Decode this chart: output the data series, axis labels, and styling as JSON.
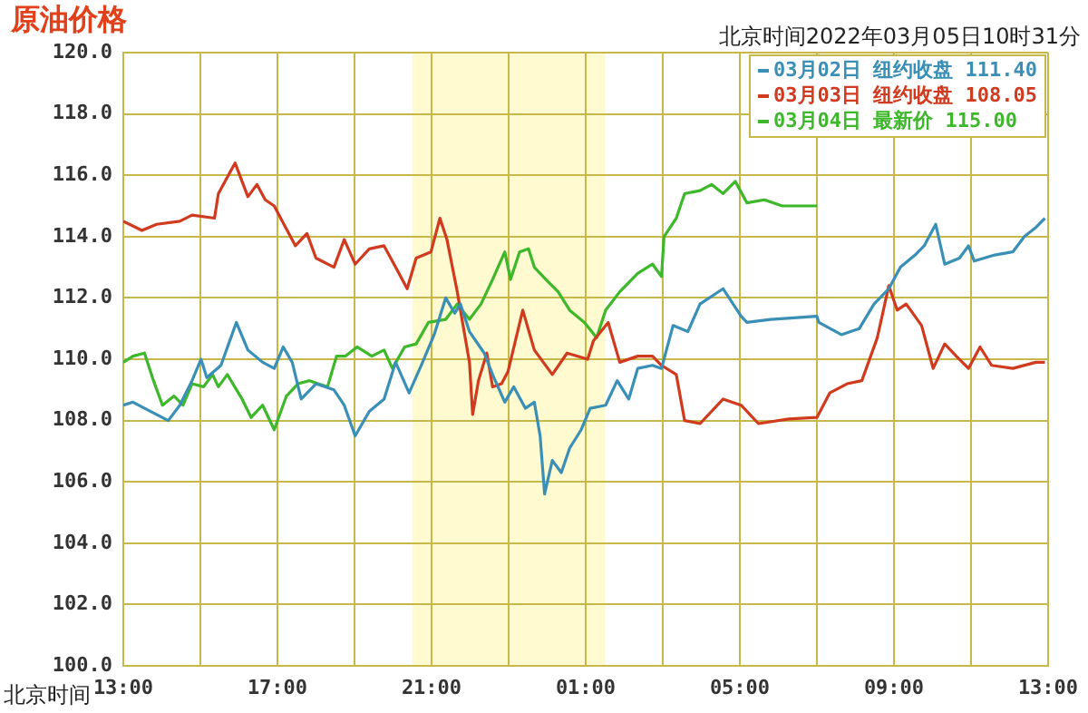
{
  "chart_data": {
    "type": "line",
    "title": "原油价格",
    "subtitle": "北京时间2022年03月05日10时31分",
    "xlabel": "北京时间",
    "xlim": [
      "2022-03-04T13:00",
      "2022-03-05T13:00"
    ],
    "xticks": [
      {
        "value": "2022-03-04T13:00",
        "label": "13:00"
      },
      {
        "value": "2022-03-04T15:00",
        "label": null
      },
      {
        "value": "2022-03-04T17:00",
        "label": "17:00"
      },
      {
        "value": "2022-03-04T19:00",
        "label": null
      },
      {
        "value": "2022-03-04T21:00",
        "label": "21:00"
      },
      {
        "value": "2022-03-04T23:00",
        "label": null
      },
      {
        "value": "2022-03-05T01:00",
        "label": "01:00"
      },
      {
        "value": "2022-03-05T03:00",
        "label": null
      },
      {
        "value": "2022-03-05T05:00",
        "label": "05:00"
      },
      {
        "value": "2022-03-05T07:00",
        "label": null
      },
      {
        "value": "2022-03-05T09:00",
        "label": "09:00"
      },
      {
        "value": "2022-03-05T11:00",
        "label": null
      },
      {
        "value": "2022-03-05T13:00",
        "label": "13:00"
      }
    ],
    "ylim": [
      100,
      120
    ],
    "yticks": [
      {
        "value": 100,
        "label": "100.0"
      },
      {
        "value": 102,
        "label": "102.0"
      },
      {
        "value": 104,
        "label": "104.0"
      },
      {
        "value": 106,
        "label": "106.0"
      },
      {
        "value": 108,
        "label": "108.0"
      },
      {
        "value": 110,
        "label": "110.0"
      },
      {
        "value": 112,
        "label": "112.0"
      },
      {
        "value": 114,
        "label": "114.0"
      },
      {
        "value": 116,
        "label": "116.0"
      },
      {
        "value": 118,
        "label": "118.0"
      },
      {
        "value": 120,
        "label": "120.0"
      }
    ],
    "grid": true,
    "legend": "top right",
    "bands": [
      {
        "axis": "x",
        "from": "2022-03-04T20:30",
        "to": "2022-03-05T01:30",
        "color": "#fffad0"
      }
    ],
    "series": [
      {
        "name": "03月02日 纽约收盘 111.40",
        "color": "#3a8fb7",
        "x": [
          "2022-03-04T13:00",
          "2022-03-04T13:15",
          "2022-03-04T13:42",
          "2022-03-04T14:10",
          "2022-03-04T14:28",
          "2022-03-04T14:47",
          "2022-03-04T15:01",
          "2022-03-04T15:10",
          "2022-03-04T15:32",
          "2022-03-04T15:56",
          "2022-03-04T16:14",
          "2022-03-04T16:37",
          "2022-03-04T16:55",
          "2022-03-04T17:09",
          "2022-03-04T17:23",
          "2022-03-04T17:37",
          "2022-03-04T18:00",
          "2022-03-04T18:28",
          "2022-03-04T18:44",
          "2022-03-04T19:01",
          "2022-03-04T19:23",
          "2022-03-04T19:46",
          "2022-03-04T20:04",
          "2022-03-04T20:25",
          "2022-03-04T20:46",
          "2022-03-04T21:04",
          "2022-03-04T21:22",
          "2022-03-04T21:36",
          "2022-03-04T21:45",
          "2022-03-04T21:59",
          "2022-03-04T22:22",
          "2022-03-04T22:35",
          "2022-03-04T22:54",
          "2022-03-04T23:08",
          "2022-03-04T23:26",
          "2022-03-04T23:40",
          "2022-03-04T23:49",
          "2022-03-04T23:56",
          "2022-03-05T00:08",
          "2022-03-05T00:22",
          "2022-03-05T00:35",
          "2022-03-05T00:53",
          "2022-03-05T01:07",
          "2022-03-05T01:31",
          "2022-03-05T01:49",
          "2022-03-05T02:07",
          "2022-03-05T02:21",
          "2022-03-05T02:44",
          "2022-03-05T02:58",
          "2022-03-05T03:16",
          "2022-03-05T03:39",
          "2022-03-05T03:58",
          "2022-03-05T04:34",
          "2022-03-05T05:02",
          "2022-03-05T05:11",
          "2022-03-05T05:48",
          "2022-03-05T07:00",
          "2022-03-05T07:03",
          "2022-03-05T07:38",
          "2022-03-05T08:06",
          "2022-03-05T08:29",
          "2022-03-05T08:52",
          "2022-03-05T09:10",
          "2022-03-05T09:33",
          "2022-03-05T09:47",
          "2022-03-05T10:05",
          "2022-03-05T10:19",
          "2022-03-05T10:42",
          "2022-03-05T10:56",
          "2022-03-05T11:05",
          "2022-03-05T11:37",
          "2022-03-05T12:05",
          "2022-03-05T12:23",
          "2022-03-05T12:41",
          "2022-03-05T12:55"
        ],
        "values": [
          108.5,
          108.6,
          108.3,
          108,
          108.5,
          109.3,
          110,
          109.4,
          109.8,
          111.2,
          110.3,
          109.9,
          109.7,
          110.4,
          109.9,
          108.7,
          109.2,
          109,
          108.5,
          107.5,
          108.3,
          108.7,
          109.9,
          108.9,
          109.9,
          110.8,
          112,
          111.5,
          111.8,
          110.9,
          110.2,
          109.5,
          108.6,
          109.1,
          108.4,
          108.6,
          107.5,
          105.6,
          106.7,
          106.3,
          107.1,
          107.7,
          108.4,
          108.5,
          109.3,
          108.7,
          109.7,
          109.8,
          109.7,
          111.1,
          110.9,
          111.8,
          112.3,
          111.4,
          111.2,
          111.3,
          111.4,
          111.2,
          110.8,
          111,
          111.8,
          112.3,
          113,
          113.4,
          113.7,
          114.4,
          113.1,
          113.3,
          113.7,
          113.2,
          113.4,
          113.5,
          114,
          114.3,
          114.6
        ]
      },
      {
        "name": "03月03日 纽约收盘 108.05",
        "color": "#d03a1e",
        "x": [
          "2022-03-04T13:00",
          "2022-03-04T13:29",
          "2022-03-04T13:52",
          "2022-03-04T14:28",
          "2022-03-04T14:47",
          "2022-03-04T15:22",
          "2022-03-04T15:28",
          "2022-03-04T15:54",
          "2022-03-04T16:14",
          "2022-03-04T16:28",
          "2022-03-04T16:41",
          "2022-03-04T16:55",
          "2022-03-04T17:05",
          "2022-03-04T17:28",
          "2022-03-04T17:46",
          "2022-03-04T18:00",
          "2022-03-04T18:28",
          "2022-03-04T18:44",
          "2022-03-04T19:01",
          "2022-03-04T19:23",
          "2022-03-04T19:46",
          "2022-03-04T20:04",
          "2022-03-04T20:22",
          "2022-03-04T20:36",
          "2022-03-04T20:59",
          "2022-03-04T21:13",
          "2022-03-04T21:24",
          "2022-03-04T21:40",
          "2022-03-04T21:59",
          "2022-03-04T22:04",
          "2022-03-04T22:13",
          "2022-03-04T22:26",
          "2022-03-04T22:35",
          "2022-03-04T22:49",
          "2022-03-04T22:59",
          "2022-03-04T23:22",
          "2022-03-04T23:40",
          "2022-03-05T00:08",
          "2022-03-05T00:31",
          "2022-03-05T01:03",
          "2022-03-05T01:12",
          "2022-03-05T01:35",
          "2022-03-05T01:53",
          "2022-03-05T02:21",
          "2022-03-05T02:44",
          "2022-03-05T02:58",
          "2022-03-05T03:21",
          "2022-03-05T03:34",
          "2022-03-05T03:58",
          "2022-03-05T04:34",
          "2022-03-05T05:02",
          "2022-03-05T05:29",
          "2022-03-05T06:16",
          "2022-03-05T07:00",
          "2022-03-05T07:20",
          "2022-03-05T07:47",
          "2022-03-05T08:10",
          "2022-03-05T08:34",
          "2022-03-05T08:52",
          "2022-03-05T09:05",
          "2022-03-05T09:19",
          "2022-03-05T09:43",
          "2022-03-05T10:01",
          "2022-03-05T10:19",
          "2022-03-05T10:37",
          "2022-03-05T10:56",
          "2022-03-05T11:14",
          "2022-03-05T11:32",
          "2022-03-05T12:05",
          "2022-03-05T12:41",
          "2022-03-05T12:55"
        ],
        "values": [
          114.5,
          114.2,
          114.4,
          114.5,
          114.7,
          114.6,
          115.4,
          116.4,
          115.3,
          115.7,
          115.2,
          115,
          114.6,
          113.7,
          114.1,
          113.3,
          113,
          113.9,
          113.1,
          113.6,
          113.7,
          113,
          112.3,
          113.3,
          113.5,
          114.6,
          113.9,
          112.2,
          109.9,
          108.2,
          109.3,
          110.2,
          109.1,
          109.2,
          109.6,
          111.6,
          110.3,
          109.5,
          110.2,
          110,
          110.6,
          111.2,
          109.9,
          110.1,
          110.1,
          109.8,
          109.5,
          108,
          107.9,
          108.7,
          108.5,
          107.9,
          108.05,
          108.1,
          108.9,
          109.2,
          109.3,
          110.7,
          112.4,
          111.6,
          111.8,
          111.1,
          109.7,
          110.5,
          110.1,
          109.7,
          110.4,
          109.8,
          109.7,
          109.9,
          109.9
        ]
      },
      {
        "name": "03月04日 最新价 115.00",
        "color": "#3cb82a",
        "x": [
          "2022-03-04T13:00",
          "2022-03-04T13:15",
          "2022-03-04T13:33",
          "2022-03-04T13:47",
          "2022-03-04T14:01",
          "2022-03-04T14:19",
          "2022-03-04T14:33",
          "2022-03-04T14:47",
          "2022-03-04T15:05",
          "2022-03-04T15:19",
          "2022-03-04T15:28",
          "2022-03-04T15:42",
          "2022-03-04T16:05",
          "2022-03-04T16:19",
          "2022-03-04T16:37",
          "2022-03-04T16:55",
          "2022-03-04T17:14",
          "2022-03-04T17:32",
          "2022-03-04T17:50",
          "2022-03-04T18:18",
          "2022-03-04T18:32",
          "2022-03-04T18:46",
          "2022-03-04T19:04",
          "2022-03-04T19:27",
          "2022-03-04T19:46",
          "2022-03-04T19:59",
          "2022-03-04T20:18",
          "2022-03-04T20:36",
          "2022-03-04T20:55",
          "2022-03-04T21:22",
          "2022-03-04T21:40",
          "2022-03-04T21:59",
          "2022-03-04T22:17",
          "2022-03-04T22:35",
          "2022-03-04T22:54",
          "2022-03-04T23:03",
          "2022-03-04T23:17",
          "2022-03-04T23:31",
          "2022-03-04T23:40",
          "2022-03-04T23:58",
          "2022-03-05T00:17",
          "2022-03-05T00:35",
          "2022-03-05T00:58",
          "2022-03-05T01:17",
          "2022-03-05T01:31",
          "2022-03-05T01:53",
          "2022-03-05T02:21",
          "2022-03-05T02:44",
          "2022-03-05T02:58",
          "2022-03-05T03:02",
          "2022-03-05T03:21",
          "2022-03-05T03:34",
          "2022-03-05T03:58",
          "2022-03-05T04:16",
          "2022-03-05T04:34",
          "2022-03-05T04:53",
          "2022-03-05T05:11",
          "2022-03-05T05:38",
          "2022-03-05T06:06",
          "2022-03-05T07:00"
        ],
        "values": [
          109.9,
          110.1,
          110.2,
          109.3,
          108.5,
          108.8,
          108.5,
          109.2,
          109.1,
          109.5,
          109.1,
          109.5,
          108.7,
          108.1,
          108.5,
          107.7,
          108.8,
          109.2,
          109.3,
          109.1,
          110.1,
          110.1,
          110.4,
          110.1,
          110.3,
          109.7,
          110.4,
          110.5,
          111.2,
          111.3,
          111.8,
          111.3,
          111.8,
          112.6,
          113.5,
          112.6,
          113.5,
          113.6,
          113,
          112.6,
          112.2,
          111.6,
          111.2,
          110.7,
          111.6,
          112.2,
          112.8,
          113.1,
          112.7,
          114,
          114.6,
          115.4,
          115.5,
          115.7,
          115.4,
          115.8,
          115.1,
          115.2,
          115,
          115
        ]
      }
    ]
  }
}
